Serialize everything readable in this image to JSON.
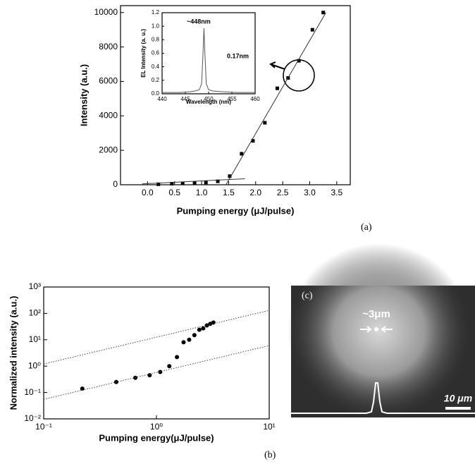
{
  "chart_data": [
    {
      "type": "scatter",
      "panel_label": "(a)",
      "xlabel": "Pumping energy (μJ/pulse)",
      "ylabel": "Intensity (a.u.)",
      "xlim": [
        -0.5,
        3.75
      ],
      "ylim": [
        0,
        10400
      ],
      "xticks": [
        {
          "value": 0,
          "label": "0.0"
        },
        0.5,
        {
          "value": 1,
          "label": "1.0"
        },
        1.5,
        {
          "value": 2,
          "label": "2.0"
        },
        2.5,
        {
          "value": 3,
          "label": "3.0"
        },
        3.5
      ],
      "yticks": [
        0,
        2000,
        4000,
        6000,
        8000,
        10000
      ],
      "series": [
        {
          "marker": "square",
          "color": "#000000",
          "x": [
            0.2,
            0.45,
            0.65,
            0.87,
            1.08,
            1.3,
            1.52,
            1.74,
            1.95,
            2.17,
            2.4,
            2.6,
            2.8,
            3.05,
            3.25
          ],
          "values": [
            30,
            60,
            80,
            100,
            130,
            200,
            500,
            1800,
            2550,
            3600,
            5600,
            6200,
            7200,
            9000,
            10000
          ]
        },
        {
          "style": "solid",
          "color": "#333333",
          "x": [
            -0.1,
            1.8
          ],
          "values": [
            50,
            350
          ]
        },
        {
          "style": "solid",
          "color": "#333333",
          "x": [
            1.45,
            3.3
          ],
          "values": [
            0,
            10000
          ]
        }
      ]
    },
    {
      "type": "line",
      "xlabel": "Wavelength (nm)",
      "ylabel": "EL Intensity (a. u.)",
      "annotations": [
        "~448nm",
        "0.17nm"
      ],
      "xlim": [
        440,
        460
      ],
      "ylim": [
        0,
        1.2
      ],
      "xticks": [
        440,
        445,
        450,
        455,
        460
      ],
      "yticks": [
        {
          "value": 0,
          "label": "0.0"
        },
        0.2,
        0.4,
        0.6,
        0.8,
        {
          "value": 1,
          "label": "1.0"
        },
        1.2
      ],
      "series": [
        {
          "style": "solid",
          "color": "#555555",
          "x": [
            440,
            444,
            446,
            447,
            448,
            448.5,
            448.8,
            449,
            449.2,
            449.5,
            450,
            451,
            453,
            456,
            460
          ],
          "values": [
            0.02,
            0.02,
            0.03,
            0.04,
            0.06,
            0.15,
            0.6,
            0.97,
            0.6,
            0.15,
            0.06,
            0.04,
            0.03,
            0.02,
            0.02
          ]
        }
      ]
    },
    {
      "type": "scatter",
      "panel_label": "(b)",
      "xlabel": "Pumping energy(μJ/pulse)",
      "ylabel": "Normalized intensity (a.u.)",
      "xscale": "log",
      "yscale": "log",
      "xlim": [
        0.1,
        10
      ],
      "ylim": [
        0.01,
        1000
      ],
      "xticks": [
        {
          "value": 0.1,
          "label": "10⁻¹"
        },
        {
          "value": 1,
          "label": "10⁰"
        },
        {
          "value": 10,
          "label": "10¹"
        }
      ],
      "yticks": [
        {
          "value": 0.01,
          "label": "10⁻²"
        },
        {
          "value": 0.1,
          "label": "10⁻¹"
        },
        {
          "value": 1,
          "label": "10⁰"
        },
        {
          "value": 10,
          "label": "10¹"
        },
        {
          "value": 100,
          "label": "10²"
        },
        {
          "value": 1000,
          "label": "10³"
        }
      ],
      "series": [
        {
          "marker": "circle",
          "color": "#000000",
          "x": [
            0.22,
            0.44,
            0.65,
            0.87,
            1.08,
            1.3,
            1.52,
            1.74,
            1.95,
            2.17,
            2.4,
            2.6,
            2.8,
            3.0,
            3.2
          ],
          "values": [
            0.14,
            0.25,
            0.36,
            0.45,
            0.6,
            1.0,
            2.2,
            8,
            10,
            15,
            24,
            27,
            35,
            40,
            45
          ]
        },
        {
          "style": "dotted",
          "color": "#444444",
          "x": [
            0.1,
            10
          ],
          "values": [
            1.2,
            130
          ]
        },
        {
          "style": "dotted",
          "color": "#444444",
          "x": [
            0.1,
            10
          ],
          "values": [
            0.055,
            6
          ]
        }
      ]
    }
  ],
  "image_panel": {
    "label": "(c)",
    "annotation": "~3μm",
    "scale_bar": "10 μm"
  }
}
